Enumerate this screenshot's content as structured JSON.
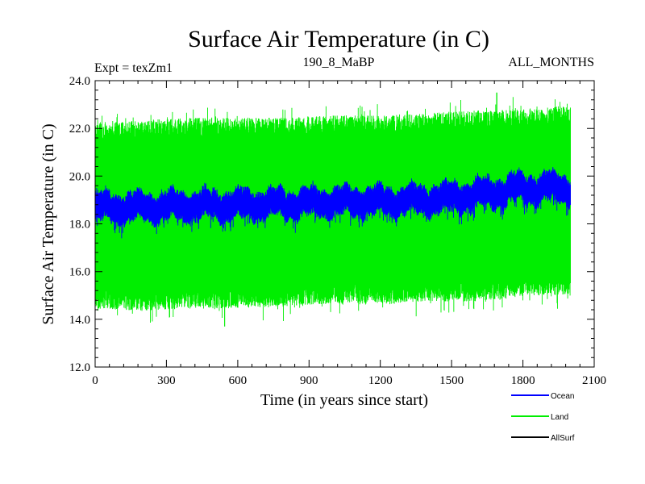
{
  "chart_data": {
    "type": "line",
    "title": "Surface Air Temperature (in C)",
    "subtitle_left": "Expt = texZm1",
    "subtitle_center": "190_8_MaBP",
    "subtitle_right": "ALL_MONTHS",
    "xlabel": "Time (in years since start)",
    "ylabel": "Surface Air Temperature (in C)",
    "xlim": [
      0,
      2100
    ],
    "ylim": [
      12.0,
      24.0
    ],
    "x_ticks": [
      0,
      300,
      600,
      900,
      1200,
      1500,
      1800,
      2100
    ],
    "x_tick_labels": [
      "0",
      "300",
      "600",
      "900",
      "1200",
      "1500",
      "1800",
      "2100"
    ],
    "y_ticks": [
      12.0,
      14.0,
      16.0,
      18.0,
      20.0,
      22.0,
      24.0
    ],
    "y_tick_labels": [
      "12.0",
      "14.0",
      "16.0",
      "18.0",
      "20.0",
      "22.0",
      "24.0"
    ],
    "x_minor_step": 60,
    "y_minor_step": 0.4,
    "time_range": [
      0,
      2000
    ],
    "series": [
      {
        "name": "Land",
        "color": "#00ee00",
        "monthly": true,
        "description": "seasonal cycle envelope",
        "low_anchor_x": [
          0,
          200,
          400,
          600,
          800,
          1000,
          1200,
          1400,
          1600,
          1800,
          2000
        ],
        "low_anchor_y": [
          14.9,
          14.8,
          14.9,
          14.9,
          15.0,
          15.1,
          15.1,
          15.2,
          15.2,
          15.4,
          15.5
        ],
        "high_anchor_x": [
          0,
          200,
          400,
          600,
          800,
          1000,
          1200,
          1400,
          1600,
          1800,
          2000
        ],
        "high_anchor_y": [
          21.8,
          21.9,
          22.0,
          22.0,
          22.0,
          22.1,
          22.1,
          22.2,
          22.3,
          22.4,
          22.5
        ],
        "min_spike": {
          "x": 545,
          "y": 13.7
        },
        "max_spike": {
          "x": 1690,
          "y": 23.5
        }
      },
      {
        "name": "Ocean",
        "color": "#0000ff",
        "monthly": true,
        "description": "narrow band",
        "mean_anchor_x": [
          0,
          200,
          400,
          600,
          800,
          1000,
          1200,
          1400,
          1600,
          1800,
          2000
        ],
        "mean_anchor_y": [
          18.7,
          18.7,
          18.75,
          18.8,
          18.85,
          18.9,
          18.95,
          19.0,
          19.2,
          19.5,
          19.5
        ],
        "half_range": 0.45
      },
      {
        "name": "AllSurf",
        "color": "#000000",
        "description": "legend only"
      }
    ],
    "legend": {
      "placement": "bottom-right",
      "entries": [
        "Ocean",
        "Land",
        "AllSurf"
      ]
    }
  }
}
